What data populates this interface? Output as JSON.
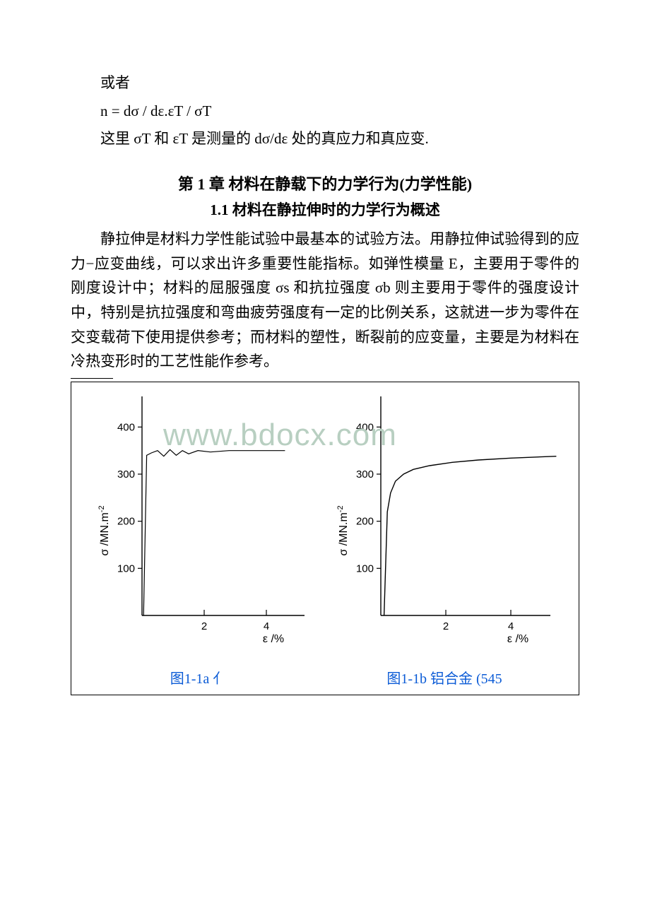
{
  "intro": {
    "line1": "或者",
    "line2": "n = dσ / dε.εT / σT",
    "line3": "这里 σT 和 εT 是测量的 dσ/dε 处的真应力和真应变."
  },
  "heading": "第 1 章 材料在静载下的力学行为(力学性能)",
  "subheading": "1.1 材料在静拉伸时的力学行为概述",
  "body": "静拉伸是材料力学性能试验中最基本的试验方法。用静拉伸试验得到的应力−应变曲线，可以求出许多重要性能指标。如弹性模量 E，主要用于零件的刚度设计中；材料的屈服强度 σs 和抗拉强度 σb 则主要用于零件的强度设计中，特别是抗拉强度和弯曲疲劳强度有一定的比例关系，这就进一步为零件在交变载荷下使用提供参考；而材料的塑性，断裂前的应变量，主要是为材料在冷热变形时的工艺性能作参考。",
  "watermark": "www.bdocx.com",
  "chart_left": {
    "type": "line",
    "y_ticks": [
      100,
      200,
      300,
      400
    ],
    "x_ticks": [
      2,
      4
    ],
    "y_label": "σ /MN.m",
    "y_label_sup": "-2",
    "x_label": "ε /%",
    "xlim": [
      0,
      5
    ],
    "ylim": [
      0,
      450
    ],
    "line_color": "#000000",
    "line_width": 1.2,
    "axis_color": "#000000",
    "background_color": "#ffffff",
    "tick_fontsize": 15,
    "caption": "图1-1a  亻",
    "caption_color": "#0b5bd6",
    "curve_points": [
      [
        0.05,
        0
      ],
      [
        0.15,
        340
      ],
      [
        0.3,
        345
      ],
      [
        0.5,
        350
      ],
      [
        0.7,
        338
      ],
      [
        0.9,
        352
      ],
      [
        1.1,
        340
      ],
      [
        1.3,
        350
      ],
      [
        1.5,
        343
      ],
      [
        1.8,
        350
      ],
      [
        2.2,
        347
      ],
      [
        2.8,
        350
      ],
      [
        3.6,
        350
      ],
      [
        4.6,
        350
      ]
    ]
  },
  "chart_right": {
    "type": "line",
    "y_ticks": [
      100,
      200,
      300,
      400
    ],
    "x_ticks": [
      2,
      4
    ],
    "y_label": "σ /MN.m",
    "y_label_sup": "-2",
    "x_label": "ε /%",
    "xlim": [
      0,
      5
    ],
    "ylim": [
      0,
      450
    ],
    "line_color": "#000000",
    "line_width": 1.4,
    "axis_color": "#000000",
    "background_color": "#ffffff",
    "tick_fontsize": 15,
    "caption": "图1-1b  铝合金 (545",
    "caption_color": "#0b5bd6",
    "curve_points": [
      [
        0.1,
        0
      ],
      [
        0.2,
        220
      ],
      [
        0.3,
        260
      ],
      [
        0.45,
        285
      ],
      [
        0.7,
        300
      ],
      [
        1.0,
        310
      ],
      [
        1.5,
        318
      ],
      [
        2.2,
        325
      ],
      [
        3.0,
        330
      ],
      [
        4.0,
        334
      ],
      [
        5.4,
        338
      ]
    ]
  }
}
